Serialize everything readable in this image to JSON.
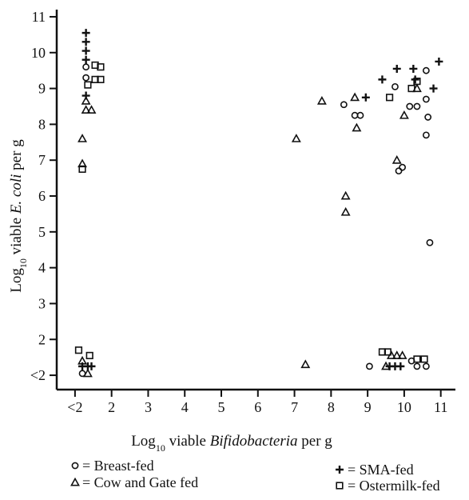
{
  "chart_data": {
    "type": "scatter",
    "xlabel_prefix": "Log",
    "xlabel_sub": "10",
    "xlabel_mid": " viable ",
    "xlabel_italic": "Bifidobacteria",
    "xlabel_suffix": " per g",
    "ylabel_prefix": "Log",
    "ylabel_sub": "10",
    "ylabel_mid": " viable ",
    "ylabel_italic": "E. coli",
    "ylabel_suffix": " per g",
    "x_ticks": [
      "<2",
      "2",
      "3",
      "4",
      "5",
      "6",
      "7",
      "8",
      "9",
      "10",
      "11"
    ],
    "y_ticks": [
      "<2",
      "2",
      "3",
      "4",
      "5",
      "6",
      "7",
      "8",
      "9",
      "10",
      "11"
    ],
    "xlim": [
      0.5,
      11.4
    ],
    "ylim": [
      0.6,
      11.2
    ],
    "grid": false,
    "legend_placement": "below",
    "series": [
      {
        "name": "= Breast-fed",
        "marker": "circle",
        "points": [
          [
            1.3,
            9.6
          ],
          [
            1.3,
            9.3
          ],
          [
            1.2,
            1.05
          ],
          [
            8.35,
            8.55
          ],
          [
            8.65,
            8.25
          ],
          [
            8.8,
            8.25
          ],
          [
            9.75,
            9.05
          ],
          [
            9.85,
            6.7
          ],
          [
            9.95,
            6.8
          ],
          [
            10.15,
            8.5
          ],
          [
            10.35,
            8.5
          ],
          [
            10.6,
            9.5
          ],
          [
            10.6,
            8.7
          ],
          [
            10.65,
            8.2
          ],
          [
            10.6,
            7.7
          ],
          [
            10.7,
            4.7
          ],
          [
            9.05,
            1.25
          ],
          [
            10.2,
            1.4
          ],
          [
            10.35,
            1.25
          ],
          [
            10.6,
            1.25
          ]
        ]
      },
      {
        "name": "= Cow and Gate fed",
        "marker": "triangle",
        "points": [
          [
            1.2,
            7.6
          ],
          [
            1.2,
            6.9
          ],
          [
            1.3,
            8.4
          ],
          [
            1.45,
            8.4
          ],
          [
            1.3,
            8.65
          ],
          [
            1.2,
            1.4
          ],
          [
            1.35,
            1.05
          ],
          [
            7.05,
            7.6
          ],
          [
            7.3,
            1.3
          ],
          [
            7.75,
            8.65
          ],
          [
            8.4,
            6.0
          ],
          [
            8.4,
            5.55
          ],
          [
            8.65,
            8.75
          ],
          [
            8.7,
            7.9
          ],
          [
            9.8,
            7.0
          ],
          [
            10.0,
            8.25
          ],
          [
            10.35,
            9.0
          ],
          [
            9.5,
            1.25
          ],
          [
            9.65,
            1.55
          ],
          [
            9.8,
            1.55
          ],
          [
            9.95,
            1.55
          ]
        ]
      },
      {
        "name": "= SMA-fed",
        "marker": "plus",
        "points": [
          [
            1.3,
            10.55
          ],
          [
            1.3,
            10.3
          ],
          [
            1.3,
            10.05
          ],
          [
            1.3,
            9.8
          ],
          [
            1.3,
            8.8
          ],
          [
            1.2,
            1.25
          ],
          [
            1.35,
            1.25
          ],
          [
            1.45,
            1.25
          ],
          [
            8.95,
            8.75
          ],
          [
            9.4,
            9.25
          ],
          [
            9.8,
            9.55
          ],
          [
            10.25,
            9.55
          ],
          [
            10.3,
            9.25
          ],
          [
            10.8,
            9.0
          ],
          [
            10.95,
            9.75
          ],
          [
            9.6,
            1.25
          ],
          [
            9.75,
            1.25
          ],
          [
            9.9,
            1.25
          ]
        ]
      },
      {
        "name": "= Ostermilk-fed",
        "marker": "square",
        "points": [
          [
            1.2,
            6.75
          ],
          [
            1.35,
            9.1
          ],
          [
            1.55,
            9.65
          ],
          [
            1.7,
            9.6
          ],
          [
            1.55,
            9.25
          ],
          [
            1.7,
            9.25
          ],
          [
            1.1,
            1.7
          ],
          [
            1.4,
            1.55
          ],
          [
            9.6,
            8.75
          ],
          [
            10.2,
            9.0
          ],
          [
            10.35,
            9.2
          ],
          [
            9.4,
            1.65
          ],
          [
            9.55,
            1.65
          ],
          [
            10.35,
            1.45
          ],
          [
            10.55,
            1.45
          ]
        ]
      }
    ]
  }
}
